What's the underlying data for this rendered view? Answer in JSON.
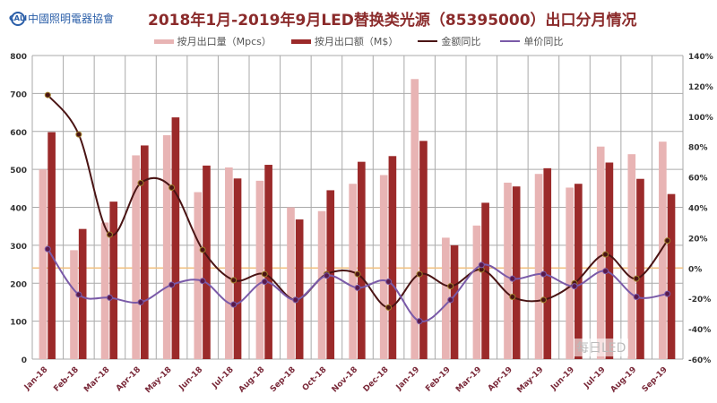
{
  "logo_text": "中國照明電器協會",
  "logo_mark": "CALI",
  "watermark": "每日LED",
  "chart_data": {
    "type": "bar+line",
    "title": "2018年1月-2019年9月LED替换类光源（85395000）出口分月情况",
    "categories": [
      "Jan-18",
      "Feb-18",
      "Mar-18",
      "Apr-18",
      "May-18",
      "Jun-18",
      "Jul-18",
      "Aug-18",
      "Sep-18",
      "Oct-18",
      "Nov-18",
      "Dec-18",
      "Jan-19",
      "Feb-19",
      "Mar-19",
      "Apr-19",
      "May-19",
      "Jun-19",
      "Jul-19",
      "Aug-19",
      "Sep-19"
    ],
    "series": [
      {
        "name": "按月出口量（Mpcs）",
        "type": "bar",
        "axis": "left",
        "color": "#e8b4b4",
        "values": [
          500,
          287,
          360,
          537,
          590,
          440,
          505,
          470,
          400,
          390,
          462,
          485,
          738,
          320,
          352,
          465,
          488,
          452,
          560,
          540,
          573
        ]
      },
      {
        "name": "按月出口额（M$）",
        "type": "bar",
        "axis": "left",
        "color": "#9b2a2a",
        "values": [
          598,
          343,
          415,
          563,
          637,
          510,
          476,
          512,
          368,
          445,
          520,
          535,
          575,
          300,
          412,
          455,
          503,
          462,
          518,
          475,
          435
        ]
      },
      {
        "name": "金额同比",
        "type": "line",
        "axis": "right",
        "color": "#4a1414",
        "marker": "#a0802a",
        "values": [
          114,
          88,
          22,
          56,
          53,
          12,
          -8,
          -4,
          -21,
          -4,
          -4,
          -26,
          -4,
          -12,
          -1,
          -19,
          -21,
          -10,
          9,
          -7,
          18
        ]
      },
      {
        "name": "单价同比",
        "type": "line",
        "axis": "right",
        "color": "#7a5aa8",
        "marker": "#5a1a4a",
        "values": [
          12.5,
          -17.5,
          -19.5,
          -22.5,
          -11,
          -8.5,
          -24,
          -9,
          -21,
          -5,
          -13,
          -9,
          -35,
          -21,
          2,
          -7,
          -4,
          -12,
          -2,
          -19,
          -17
        ]
      }
    ],
    "left_axis": {
      "min": 0,
      "max": 800,
      "ticks": [
        "0",
        "100",
        "200",
        "300",
        "400",
        "500",
        "600",
        "700",
        "800"
      ]
    },
    "right_axis": {
      "min": -60,
      "max": 140,
      "ticks": [
        "-60%",
        "-40%",
        "-20%",
        "0%",
        "20%",
        "40%",
        "60%",
        "80%",
        "100%",
        "120%",
        "140%"
      ]
    },
    "zero_line_color": "#f0c080",
    "grid": true,
    "legend": "top"
  }
}
